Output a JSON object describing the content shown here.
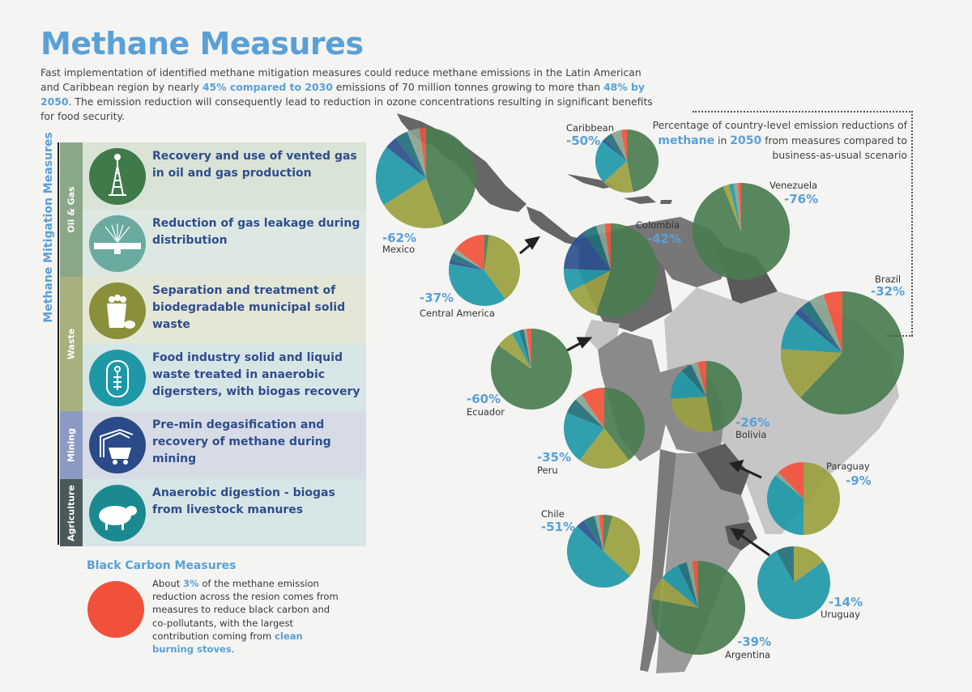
{
  "header": {
    "title": "Methane Measures",
    "intro": {
      "p1": "Fast implementation of identified methane mitigation measures could reduce methane emissions in the Latin American and Caribbean region by nearly ",
      "b1": "45% compared to 2030",
      "p2": " emissions of 70 million tonnes growing to more than ",
      "b2": "48% by 2050",
      "p3": ". The emission reduction will consequently lead to reduction in ozone concentrations resulting in significant benefits for food security."
    }
  },
  "methane_measures": {
    "heading": "Methane Mitigation Measures",
    "categories": [
      {
        "label": "Oil & Gas",
        "color": "#8aa888"
      },
      {
        "label": "Waste",
        "color": "#a8b07e"
      },
      {
        "label": "Mining",
        "color": "#8a9ac4"
      },
      {
        "label": "Agriculture",
        "color": "#4a5a5a"
      }
    ],
    "measures": [
      {
        "text": "Recovery and use of vented gas in oil and gas production",
        "icon": "oil-rig-icon",
        "color": "#3f7a4a",
        "bg": "#d9e3d6"
      },
      {
        "text": "Reduction of gas leakage during distribution",
        "icon": "gas-pipe-icon",
        "color": "#6aaaa0",
        "bg": "#dde8e3"
      },
      {
        "text": "Separation and treatment of biodegradable municipal solid waste",
        "icon": "waste-bin-icon",
        "color": "#8a8f3a",
        "bg": "#e5e7d6"
      },
      {
        "text": "Food industry solid and liquid waste treated in anaerobic digersters, with biogas recovery",
        "icon": "digester-icon",
        "color": "#1f98a6",
        "bg": "#d6e6e6"
      },
      {
        "text": "Pre-min degasification and recovery of methane during mining",
        "icon": "mine-cart-icon",
        "color": "#2a4a8a",
        "bg": "#d6dbe6"
      },
      {
        "text": "Anaerobic digestion - biogas from livestock manures",
        "icon": "sheep-icon",
        "color": "#1a8a90",
        "bg": "#d6e6e6"
      }
    ]
  },
  "black_carbon": {
    "title": "Black Carbon Measures",
    "p1": "About ",
    "b1": "3%",
    "p2": " of the methane emission reduction across the resion comes from measures to reduce black carbon and co-pollutants, with the largest contribution coming from ",
    "b2": "clean burning stoves",
    "p3": ".",
    "color": "#f1503a"
  },
  "legend": {
    "p1": "Percentage of country-level emission reductions of ",
    "b1": "methane",
    "p2": " in ",
    "b2": "2050",
    "p3": " from measures compared to business-as-usual scenario"
  },
  "colors": {
    "oil_gas_vented": "#4a7c50",
    "gas_leakage": "#8aa28e",
    "msw": "#9aa040",
    "food_industry": "#1e98a8",
    "mining": "#2b4f8e",
    "agriculture": "#1f6f7a",
    "black_carbon": "#f1503a"
  },
  "countries": [
    {
      "name": "Mexico",
      "pct": "-62%"
    },
    {
      "name": "Caribbean",
      "pct": "-50%"
    },
    {
      "name": "Venezuela",
      "pct": "-76%"
    },
    {
      "name": "Colombia",
      "pct": "-42%"
    },
    {
      "name": "Central America",
      "pct": "-37%"
    },
    {
      "name": "Brazil",
      "pct": "-32%"
    },
    {
      "name": "Ecuador",
      "pct": "-60%"
    },
    {
      "name": "Bolivia",
      "pct": "-26%"
    },
    {
      "name": "Peru",
      "pct": "-35%"
    },
    {
      "name": "Paraguay",
      "pct": "-9%"
    },
    {
      "name": "Chile",
      "pct": "-51%"
    },
    {
      "name": "Uruguay",
      "pct": "-14%"
    },
    {
      "name": "Argentina",
      "pct": "-39%"
    }
  ],
  "chart_data": {
    "type": "pie",
    "slice_order": [
      "oil_gas_vented",
      "msw",
      "food_industry",
      "mining",
      "agriculture",
      "gas_leakage",
      "black_carbon"
    ],
    "pies": [
      {
        "country": "Mexico",
        "shares": [
          0.43,
          0.21,
          0.19,
          0.04,
          0.04,
          0.04,
          0.02
        ]
      },
      {
        "country": "Caribbean",
        "shares": [
          0.46,
          0.16,
          0.22,
          0.02,
          0.04,
          0.05,
          0.03
        ]
      },
      {
        "country": "Venezuela",
        "shares": [
          0.93,
          0.02,
          0.015,
          0,
          0,
          0.015,
          0.01
        ]
      },
      {
        "country": "Colombia",
        "shares": [
          0.54,
          0.12,
          0.08,
          0.14,
          0.05,
          0.03,
          0.02
        ]
      },
      {
        "country": "Central America",
        "shares": [
          0.02,
          0.36,
          0.36,
          0.02,
          0.03,
          0.02,
          0.14
        ]
      },
      {
        "country": "Brazil",
        "shares": [
          0.62,
          0.14,
          0.1,
          0.02,
          0.03,
          0.04,
          0.05
        ]
      },
      {
        "country": "Ecuador",
        "shares": [
          0.85,
          0.07,
          0.03,
          0,
          0.02,
          0.01,
          0.02
        ]
      },
      {
        "country": "Bolivia",
        "shares": [
          0.47,
          0.27,
          0.14,
          0,
          0.05,
          0.03,
          0.04
        ]
      },
      {
        "country": "Peru",
        "shares": [
          0.38,
          0.2,
          0.2,
          0,
          0.06,
          0.03,
          0.09
        ]
      },
      {
        "country": "Paraguay",
        "shares": [
          0,
          0.5,
          0.36,
          0,
          0,
          0.02,
          0.12
        ]
      },
      {
        "country": "Chile",
        "shares": [
          0.04,
          0.33,
          0.5,
          0.04,
          0.05,
          0.02,
          0.02
        ]
      },
      {
        "country": "Uruguay",
        "shares": [
          0,
          0.15,
          0.77,
          0,
          0.08,
          0,
          0
        ]
      },
      {
        "country": "Argentina",
        "shares": [
          0.78,
          0.08,
          0.07,
          0,
          0.03,
          0.02,
          0.02
        ]
      }
    ]
  }
}
